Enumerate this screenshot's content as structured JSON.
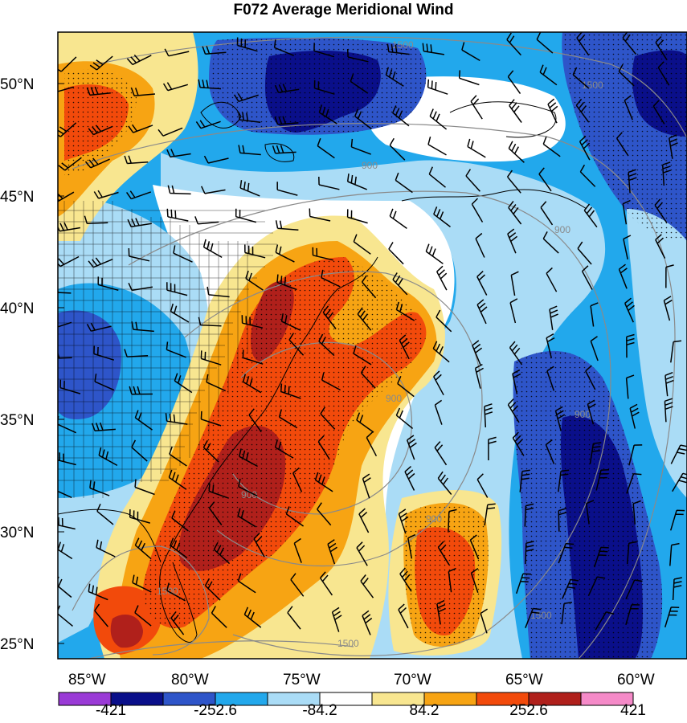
{
  "title": "F072 Average Meridional Wind",
  "latitude_labels": [
    "50°N",
    "45°N",
    "40°N",
    "35°N",
    "30°N",
    "25°N"
  ],
  "longitude_labels": [
    "85°W",
    "80°W",
    "75°W",
    "70°W",
    "65°W",
    "60°W"
  ],
  "colorbar": {
    "labels": [
      "-421",
      "-252.6",
      "-84.2",
      "84.2",
      "252.6",
      "421"
    ],
    "colors": [
      "#9a3ad6",
      "#0a0f8a",
      "#2e55c9",
      "#22a8ec",
      "#aadcf6",
      "#ffffff",
      "#f8e690",
      "#f7a413",
      "#f24a0b",
      "#b0201b",
      "#f58ac8"
    ]
  },
  "height_contour_labels": [
    "1500",
    "1500",
    "900",
    "900",
    "900",
    "900",
    "900",
    "900",
    "1500",
    "1500",
    "1500"
  ],
  "palette": {
    "deep_blue": "#0a0f8a",
    "blue": "#2e55c9",
    "mid_blue": "#22a8ec",
    "light_blue": "#aadcf6",
    "yellow": "#f8e690",
    "orange": "#f7a413",
    "red_orange": "#f24a0b",
    "dark_red": "#b0201b",
    "contour_gray": "#8a8a8a"
  }
}
